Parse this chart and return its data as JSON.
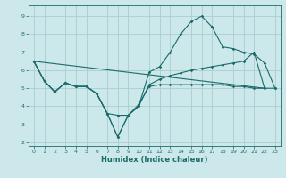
{
  "xlabel": "Humidex (Indice chaleur)",
  "background_color": "#cce8ea",
  "grid_color": "#aacdd0",
  "line_color": "#1a6b6b",
  "xlim": [
    -0.5,
    23.5
  ],
  "ylim": [
    1.8,
    9.6
  ],
  "xticks": [
    0,
    1,
    2,
    3,
    4,
    5,
    6,
    7,
    8,
    9,
    10,
    11,
    12,
    13,
    14,
    15,
    16,
    17,
    18,
    19,
    20,
    21,
    22,
    23
  ],
  "yticks": [
    2,
    3,
    4,
    5,
    6,
    7,
    8,
    9
  ],
  "series": [
    {
      "x": [
        0,
        1,
        2,
        3,
        4,
        5,
        6,
        7,
        8,
        9,
        10,
        11,
        12,
        13,
        14,
        15,
        16,
        17,
        18,
        19,
        20,
        21,
        22,
        23
      ],
      "y": [
        6.5,
        5.4,
        4.8,
        5.3,
        5.1,
        5.1,
        4.7,
        3.6,
        3.5,
        3.5,
        4.1,
        5.1,
        5.2,
        5.2,
        5.2,
        5.2,
        5.2,
        5.2,
        5.2,
        5.1,
        5.1,
        5.0,
        5.0,
        5.0
      ],
      "has_markers": true
    },
    {
      "x": [
        0,
        1,
        2,
        3,
        4,
        5,
        6,
        7,
        8,
        9,
        10,
        11,
        12,
        13,
        14,
        15,
        16,
        17,
        18,
        19,
        20,
        21,
        22
      ],
      "y": [
        6.5,
        5.4,
        4.8,
        5.3,
        5.1,
        5.1,
        4.7,
        3.6,
        2.3,
        3.5,
        4.0,
        5.2,
        5.5,
        5.7,
        5.85,
        6.0,
        6.1,
        6.2,
        6.3,
        6.4,
        6.5,
        7.0,
        5.0
      ],
      "has_markers": true
    },
    {
      "x": [
        0,
        1,
        2,
        3,
        4,
        5,
        6,
        7,
        8,
        9,
        10,
        11,
        12,
        13,
        14,
        15,
        16,
        17,
        18,
        19,
        20,
        21,
        22,
        23
      ],
      "y": [
        6.5,
        5.4,
        4.8,
        5.3,
        5.1,
        5.1,
        4.7,
        3.6,
        2.3,
        3.5,
        4.0,
        5.9,
        6.2,
        7.0,
        8.0,
        8.7,
        9.0,
        8.4,
        7.3,
        7.2,
        7.0,
        6.9,
        6.4,
        5.0
      ],
      "has_markers": true
    },
    {
      "x": [
        0,
        22
      ],
      "y": [
        6.5,
        5.0
      ],
      "has_markers": false
    }
  ]
}
